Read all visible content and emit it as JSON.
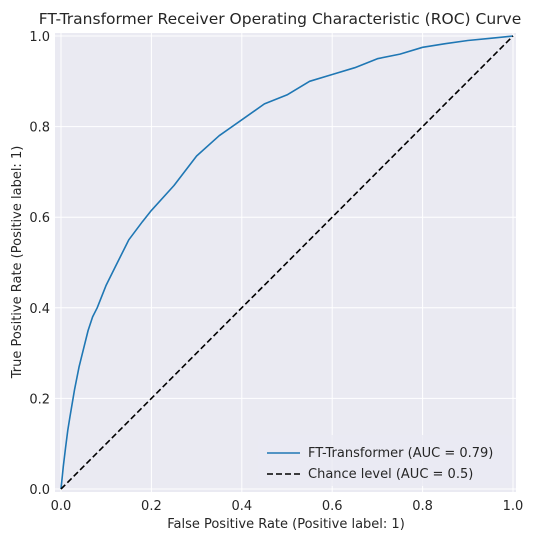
{
  "chart_data": {
    "type": "line",
    "title": "FT-Transformer Receiver Operating Characteristic (ROC) Curve",
    "xlabel": "False Positive Rate (Positive label: 1)",
    "ylabel": "True Positive Rate (Positive label: 1)",
    "xlim": [
      0.0,
      1.0
    ],
    "ylim": [
      0.0,
      1.0
    ],
    "xticks": [
      "0.0",
      "0.2",
      "0.4",
      "0.6",
      "0.8",
      "1.0"
    ],
    "yticks": [
      "0.0",
      "0.2",
      "0.4",
      "0.6",
      "0.8",
      "1.0"
    ],
    "grid": true,
    "legend_position": "lower-right",
    "series": [
      {
        "name": "FT-Transformer (AUC = 0.79)",
        "color": "#1f77b4",
        "style": "solid",
        "x": [
          0.0,
          0.005,
          0.01,
          0.015,
          0.02,
          0.03,
          0.04,
          0.05,
          0.06,
          0.07,
          0.08,
          0.1,
          0.12,
          0.15,
          0.18,
          0.2,
          0.25,
          0.3,
          0.35,
          0.4,
          0.45,
          0.5,
          0.55,
          0.6,
          0.65,
          0.7,
          0.75,
          0.8,
          0.85,
          0.9,
          0.95,
          1.0
        ],
        "y": [
          0.0,
          0.05,
          0.09,
          0.13,
          0.16,
          0.22,
          0.27,
          0.31,
          0.35,
          0.38,
          0.4,
          0.45,
          0.49,
          0.55,
          0.59,
          0.615,
          0.67,
          0.735,
          0.78,
          0.815,
          0.85,
          0.87,
          0.9,
          0.915,
          0.93,
          0.95,
          0.96,
          0.975,
          0.983,
          0.99,
          0.995,
          1.0
        ]
      },
      {
        "name": "Chance level (AUC = 0.5)",
        "color": "#000000",
        "style": "dashed",
        "x": [
          0.0,
          1.0
        ],
        "y": [
          0.0,
          1.0
        ]
      }
    ]
  }
}
